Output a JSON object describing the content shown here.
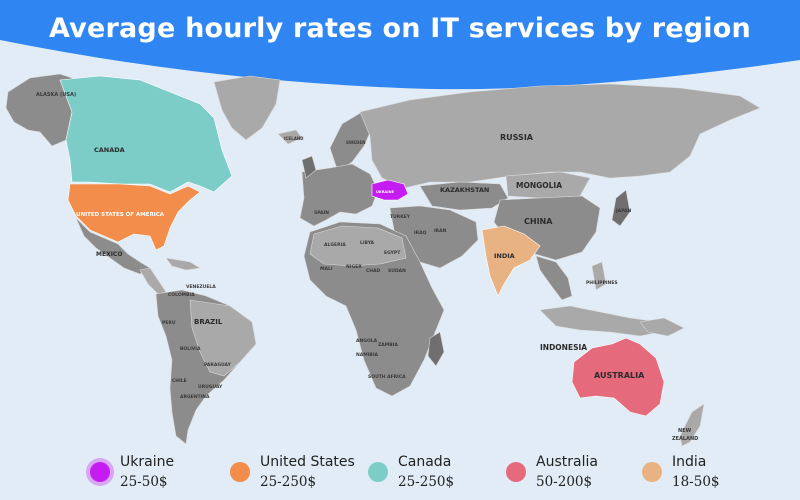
{
  "title": "Average hourly rates on IT services by region",
  "colors": {
    "banner": "#2f86f3",
    "background": "#e1ecf6",
    "land": "#8c8c8c",
    "land_light": "#a9a9a9",
    "land_dark": "#6f6f6f",
    "ukraine": "#c51cf2",
    "usa": "#f28d4b",
    "canada": "#7ccdc8",
    "australia": "#e56a7c",
    "india": "#e8b283"
  },
  "map_labels": {
    "alaska": "ALASKA (USA)",
    "canada": "CANADA",
    "usa": "UNITED STATES OF AMERICA",
    "mexico": "MEXICO",
    "brazil": "BRAZIL",
    "russia": "RUSSIA",
    "kazakhstan": "KAZAKHSTAN",
    "mongolia": "MONGOLIA",
    "china": "CHINA",
    "india": "INDIA",
    "indonesia": "INDONESIA",
    "australia": "AUSTRALIA",
    "new_zealand_1": "NEW",
    "new_zealand_2": "ZEALAND",
    "ukraine": "UKRAINE",
    "algeria": "ALGERIA",
    "libya": "LIBYA",
    "egypt": "EGYPT",
    "iran": "IRAN",
    "iraq": "IRAQ",
    "turkey": "TURKEY",
    "spain": "SPAIN",
    "mali": "MALI",
    "niger": "NIGER",
    "chad": "CHAD",
    "sudan": "SUDAN",
    "angola": "ANGOLA",
    "zambia": "ZAMBIA",
    "namibia": "NAMIBIA",
    "south_africa": "SOUTH AFRICA",
    "philippines": "PHILIPPINES",
    "japan": "JAPAN",
    "peru": "PERU",
    "bolivia": "BOLIVIA",
    "paraguay": "PARAGUAY",
    "chile": "CHILE",
    "uruguay": "URUGUAY",
    "argentina": "ARGENTINA",
    "colombia": "COLOMBIA",
    "venezuela": "VENEZUELA",
    "sweden": "SWEDEN",
    "iceland": "ICELAND"
  },
  "legend": [
    {
      "name": "Ukraine",
      "range": "25-50$",
      "color": "#c51cf2",
      "ring": true
    },
    {
      "name": "United States",
      "range": "25-250$",
      "color": "#f28d4b",
      "ring": false
    },
    {
      "name": "Canada",
      "range": "25-250$",
      "color": "#7ccdc8",
      "ring": false
    },
    {
      "name": "Australia",
      "range": "50-200$",
      "color": "#e56a7c",
      "ring": false
    },
    {
      "name": "India",
      "range": "18-50$",
      "color": "#e8b283",
      "ring": false
    }
  ]
}
